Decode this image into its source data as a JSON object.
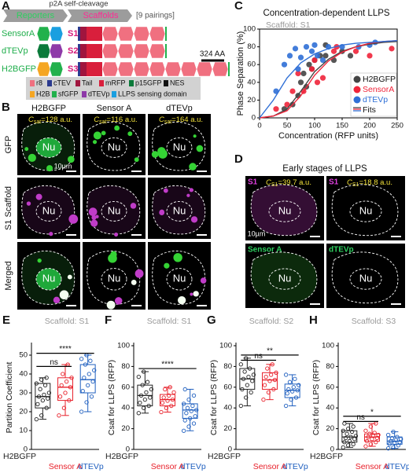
{
  "panel_a": {
    "label": "A",
    "cleavage": "p2A self-cleavage",
    "reporters": "Reporters",
    "scaffolds": "Scaffolds",
    "pairings": "[9 pairings]",
    "rows": [
      {
        "reporter": "SensorA",
        "scaffold": "S1"
      },
      {
        "reporter": "dTEVp",
        "scaffold": "S2"
      },
      {
        "reporter": "H2BGFP",
        "scaffold": "S3"
      }
    ],
    "scale": "324 AA",
    "legend": [
      {
        "label": "r8",
        "color": "#f07080"
      },
      {
        "label": "cTEV",
        "color": "#2b3a8f"
      },
      {
        "label": "Tail",
        "color": "#a0153e"
      },
      {
        "label": "mRFP",
        "color": "#d91f3c"
      },
      {
        "label": "p15GFP",
        "color": "#0b7a3a"
      },
      {
        "label": "NES",
        "color": "#111111"
      },
      {
        "label": "H2B",
        "color": "#f5a623"
      },
      {
        "label": "sfGFP",
        "color": "#22b14c"
      },
      {
        "label": "dTEVp",
        "color": "#8e3aa8"
      },
      {
        "label": "LLPS sensing domain",
        "color": "#1a9fe0"
      }
    ]
  },
  "panel_b": {
    "label": "B",
    "columns": [
      "H2BGFP",
      "Sensor A",
      "dTEVp"
    ],
    "rows": [
      "GFP",
      "S1 Scaffold",
      "Merged"
    ],
    "csat": [
      {
        "symbol": "C",
        "sub": "sat",
        "text": "=128 a.u."
      },
      {
        "symbol": "C",
        "sub": "sat",
        "text": "=116 a.u."
      },
      {
        "symbol": "C",
        "sub": "sat",
        "text": "=164 a.u."
      }
    ],
    "nucleus": "Nu",
    "scale": "10µm"
  },
  "panel_d": {
    "label": "D",
    "title": "Early stages of  LLPS",
    "top": [
      "S1",
      "S1"
    ],
    "bottom": [
      "Sensor A",
      "dTEVp"
    ],
    "csat": [
      {
        "symbol": "C",
        "sub": "S1",
        "text": "=39.7 a.u."
      },
      {
        "symbol": "C",
        "sub": "S1",
        "text": "=18.8 a.u."
      }
    ]
  },
  "chart_data": [
    {
      "type": "scatter",
      "label": "C",
      "title": "Concentration-dependent LLPS",
      "subtitle": "Scaffold: S1",
      "x_label": "Concentration (RFP units)",
      "y_label": "Phase Separation (%)",
      "xlim": [
        0,
        250
      ],
      "xticks": [
        0,
        50,
        100,
        150,
        200,
        250
      ],
      "ylim": [
        0,
        100
      ],
      "yticks": [
        0,
        20,
        40,
        60,
        80,
        100
      ],
      "legend": "lower-right",
      "series": [
        {
          "name": "H2BGFP",
          "color": "#444444",
          "x": [
            45,
            60,
            70,
            75,
            80,
            85,
            90,
            95,
            100,
            110,
            120,
            120,
            135,
            150,
            165
          ],
          "values": [
            10,
            15,
            25,
            40,
            50,
            35,
            60,
            55,
            65,
            70,
            70,
            82,
            65,
            75,
            70
          ]
        },
        {
          "name": "SensorA",
          "color": "#f0243a",
          "x": [
            30,
            50,
            60,
            70,
            80,
            95,
            100,
            105,
            115,
            135,
            140,
            175,
            200,
            240
          ],
          "values": [
            10,
            15,
            30,
            50,
            30,
            55,
            65,
            40,
            45,
            75,
            80,
            75,
            70,
            78
          ]
        },
        {
          "name": "dTEVp",
          "color": "#2f6fd6",
          "x": [
            30,
            45,
            55,
            65,
            70,
            75,
            85,
            95,
            100,
            105,
            115,
            125,
            150,
            180,
            200,
            210
          ],
          "values": [
            30,
            60,
            70,
            78,
            55,
            68,
            80,
            75,
            82,
            70,
            65,
            80,
            80,
            80,
            82,
            85
          ]
        }
      ],
      "fits": {
        "name": "Fits",
        "x": [
          0,
          25,
          50,
          75,
          100,
          125,
          150,
          175,
          200,
          225,
          250
        ],
        "curves": [
          {
            "color": "#444444",
            "values": [
              0,
              2,
              10,
              30,
              52,
              66,
              75,
              80,
              83,
              85,
              86
            ]
          },
          {
            "color": "#f0243a",
            "values": [
              0,
              2,
              8,
              25,
              48,
              64,
              74,
              80,
              84,
              86,
              87
            ]
          },
          {
            "color": "#2f6fd6",
            "values": [
              0,
              20,
              45,
              62,
              72,
              78,
              82,
              84,
              85,
              86,
              87
            ]
          }
        ]
      }
    },
    {
      "type": "box",
      "label": "E",
      "subtitle": "Scaffold: S1",
      "y_label": "Partition Coefficient",
      "ylim": [
        0,
        55
      ],
      "yticks": [
        0,
        10,
        20,
        30,
        40,
        50
      ],
      "series": [
        {
          "name": "H2BGFP",
          "color": "#222222",
          "q1": 22,
          "median": 28,
          "q3": 35,
          "whisker_low": 16,
          "whisker_high": 38,
          "points": [
            16,
            18,
            22,
            24,
            26,
            27,
            28,
            29,
            30,
            32,
            34,
            35,
            37,
            38
          ]
        },
        {
          "name": "Sensor A",
          "color": "#e8202a",
          "q1": 26,
          "median": 33,
          "q3": 38,
          "whisker_low": 18,
          "whisker_high": 45,
          "points": [
            18,
            22,
            26,
            28,
            30,
            33,
            34,
            36,
            38,
            40,
            45
          ]
        },
        {
          "name": "dTEVp",
          "color": "#1f5fbf",
          "q1": 30,
          "median": 37,
          "q3": 45,
          "whisker_low": 20,
          "whisker_high": 50,
          "points": [
            20,
            25,
            28,
            31,
            34,
            36,
            38,
            40,
            42,
            45,
            47,
            48,
            50
          ]
        }
      ],
      "annotations": [
        {
          "text": "ns",
          "from": 0,
          "to": 1,
          "y": 44
        },
        {
          "text": "****",
          "from": 0,
          "to": 2,
          "y": 51
        }
      ]
    },
    {
      "type": "box",
      "label": "F",
      "subtitle": "Scaffold: S1",
      "y_label": "Csat for LLPS (RFP)",
      "ylim": [
        0,
        100
      ],
      "yticks": [
        0,
        20,
        40,
        60,
        80,
        100
      ],
      "series": [
        {
          "name": "H2BGFP",
          "color": "#222222",
          "q1": 42,
          "median": 52,
          "q3": 62,
          "whisker_low": 35,
          "whisker_high": 75,
          "points": [
            35,
            40,
            42,
            45,
            48,
            50,
            52,
            55,
            58,
            62,
            65,
            70,
            75
          ]
        },
        {
          "name": "Sensor A",
          "color": "#e8202a",
          "q1": 42,
          "median": 48,
          "q3": 53,
          "whisker_low": 36,
          "whisker_high": 60,
          "points": [
            36,
            40,
            42,
            45,
            47,
            48,
            50,
            52,
            55,
            58,
            60
          ]
        },
        {
          "name": "dTEVp",
          "color": "#1f5fbf",
          "q1": 30,
          "median": 38,
          "q3": 44,
          "whisker_low": 18,
          "whisker_high": 58,
          "points": [
            18,
            22,
            25,
            28,
            30,
            32,
            35,
            37,
            38,
            40,
            42,
            44,
            48,
            52,
            58
          ]
        }
      ],
      "annotations": [
        {
          "text": "****",
          "from": 0,
          "to": 2,
          "y": 78
        }
      ]
    },
    {
      "type": "box",
      "label": "G",
      "subtitle": "Scaffold: S2",
      "y_label": "Csat for LLPS (RFP)",
      "ylim": [
        0,
        100
      ],
      "yticks": [
        0,
        20,
        40,
        60,
        80,
        100
      ],
      "series": [
        {
          "name": "H2BGFP",
          "color": "#222222",
          "q1": 58,
          "median": 68,
          "q3": 78,
          "whisker_low": 42,
          "whisker_high": 88,
          "points": [
            42,
            50,
            55,
            58,
            62,
            66,
            68,
            70,
            72,
            75,
            78,
            82,
            88
          ]
        },
        {
          "name": "Sensor A",
          "color": "#e8202a",
          "q1": 58,
          "median": 67,
          "q3": 74,
          "whisker_low": 48,
          "whisker_high": 82,
          "points": [
            48,
            55,
            58,
            62,
            66,
            67,
            70,
            72,
            74,
            78,
            82
          ]
        },
        {
          "name": "dTEVp",
          "color": "#1f5fbf",
          "q1": 50,
          "median": 57,
          "q3": 63,
          "whisker_low": 42,
          "whisker_high": 72,
          "points": [
            42,
            48,
            50,
            54,
            56,
            57,
            58,
            60,
            62,
            65,
            68,
            72
          ]
        }
      ],
      "annotations": [
        {
          "text": "ns",
          "from": 0,
          "to": 1,
          "y": 86
        },
        {
          "text": "**",
          "from": 0,
          "to": 2,
          "y": 91
        }
      ]
    },
    {
      "type": "box",
      "label": "H",
      "subtitle": "Scaffold: S3",
      "y_label": "Csat for LLPS (RFP)",
      "ylim": [
        0,
        100
      ],
      "yticks": [
        0,
        20,
        40,
        60,
        80,
        100
      ],
      "series": [
        {
          "name": "H2BGFP",
          "color": "#222222",
          "q1": 7,
          "median": 12,
          "q3": 18,
          "whisker_low": 2,
          "whisker_high": 25,
          "points": [
            2,
            4,
            5,
            7,
            8,
            10,
            11,
            12,
            13,
            15,
            17,
            18,
            20,
            22,
            25
          ]
        },
        {
          "name": "Sensor A",
          "color": "#e8202a",
          "q1": 8,
          "median": 12,
          "q3": 15,
          "whisker_low": 3,
          "whisker_high": 25,
          "points": [
            3,
            5,
            7,
            8,
            10,
            11,
            12,
            13,
            14,
            15,
            16,
            18,
            22,
            25
          ]
        },
        {
          "name": "dTEVp",
          "color": "#1f5fbf",
          "q1": 5,
          "median": 8,
          "q3": 12,
          "whisker_low": 1,
          "whisker_high": 17,
          "points": [
            1,
            2,
            4,
            5,
            6,
            7,
            8,
            9,
            10,
            11,
            12,
            14,
            17
          ]
        }
      ],
      "annotations": [
        {
          "text": "ns",
          "from": 0,
          "to": 1,
          "y": 27
        },
        {
          "text": "*",
          "from": 0,
          "to": 2,
          "y": 32
        }
      ]
    }
  ]
}
